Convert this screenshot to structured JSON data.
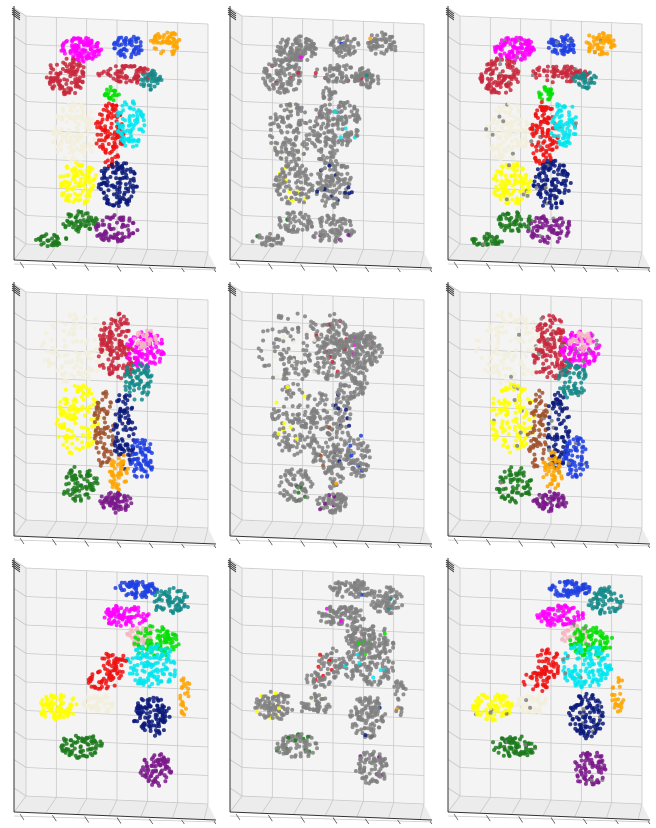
{
  "figure": {
    "rows": [
      {
        "pose": "standing-arm-raised",
        "panels": [
          "ground-truth",
          "prediction-sparse",
          "prediction-full"
        ]
      },
      {
        "pose": "bent-over",
        "panels": [
          "ground-truth",
          "prediction-sparse",
          "prediction-full"
        ]
      },
      {
        "pose": "kicking",
        "panels": [
          "ground-truth",
          "prediction-sparse",
          "prediction-full"
        ]
      }
    ]
  },
  "colors": {
    "pane": "#f4f4f4",
    "grid": "#c8c8c8",
    "axis": "#333333",
    "unlabeled": "#808080",
    "magenta": "#ff00ff",
    "blue": "#1f3fe0",
    "orange": "#ffa500",
    "crimson": "#c8283c",
    "teal": "#138a8a",
    "green": "#00e000",
    "cream": "#f2efdc",
    "red": "#ee1111",
    "cyan": "#00e5ee",
    "yellow": "#ffff00",
    "navy": "#0a1a7a",
    "darkgreen": "#1c7a1c",
    "purple": "#7a1a8a",
    "pink": "#f4b6c2",
    "brown": "#a0522d"
  }
}
